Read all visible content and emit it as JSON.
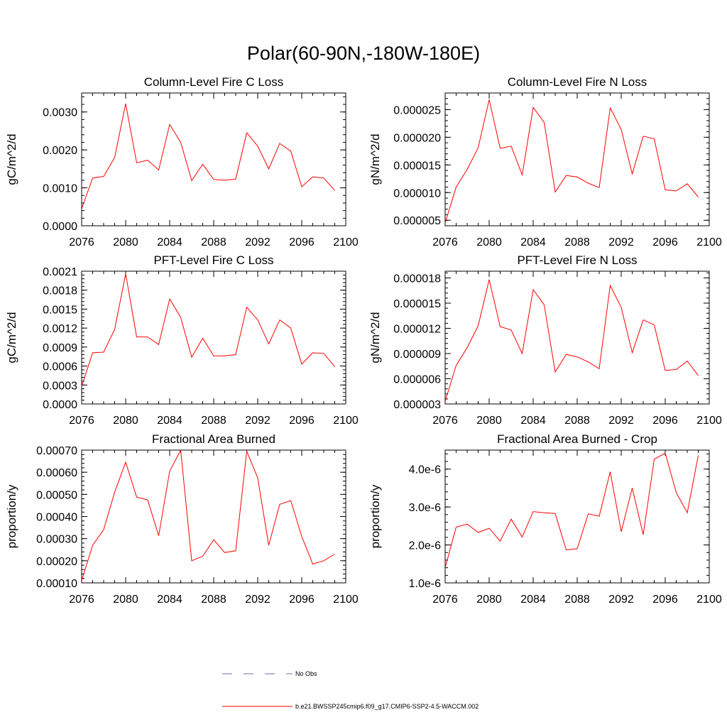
{
  "figure_title": "Polar(60-90N,-180W-180E)",
  "colors": {
    "series": "#ff0000",
    "obs": "#6b6bb3",
    "axis": "#000000"
  },
  "legend": [
    {
      "label": "No Obs",
      "style": "dashed",
      "color": "#6b6bb3"
    },
    {
      "label": "b.e21.BWSSP245cmip6.f09_g17.CMIP6-SSP2-4.5-WACCM.002",
      "style": "solid",
      "color": "#ff0000"
    }
  ],
  "chart_data": [
    {
      "type": "line",
      "title": "Column-Level Fire C Loss",
      "xlabel": "",
      "ylabel": "gC/m^2/d",
      "xlim": [
        2076,
        2100
      ],
      "ylim": [
        0,
        0.0035
      ],
      "xticks": [
        2076,
        2080,
        2084,
        2088,
        2092,
        2096,
        2100
      ],
      "xtick_labels": [
        "2076",
        "2080",
        "2084",
        "2088",
        "2092",
        "2096",
        "2100"
      ],
      "yticks": [
        0,
        0.001,
        0.002,
        0.003
      ],
      "ytick_labels": [
        "0.0000",
        "0.0010",
        "0.0020",
        "0.0030"
      ],
      "x": [
        2076,
        2077,
        2078,
        2079,
        2080,
        2081,
        2082,
        2083,
        2084,
        2085,
        2086,
        2087,
        2088,
        2089,
        2090,
        2091,
        2092,
        2093,
        2094,
        2095,
        2096,
        2097,
        2098,
        2099
      ],
      "series": [
        {
          "name": "b.e21.BWSSP245cmip6.f09_g17.CMIP6-SSP2-4.5-WACCM.002",
          "values": [
            0.00045,
            0.00126,
            0.0013,
            0.0018,
            0.00322,
            0.00166,
            0.00173,
            0.00147,
            0.00267,
            0.0022,
            0.00119,
            0.00162,
            0.00122,
            0.0012,
            0.00123,
            0.00245,
            0.0021,
            0.0015,
            0.00217,
            0.00197,
            0.00103,
            0.00129,
            0.00126,
            0.00093
          ]
        }
      ]
    },
    {
      "type": "line",
      "title": "Column-Level Fire N Loss",
      "xlabel": "",
      "ylabel": "gN/m^2/d",
      "xlim": [
        2076,
        2100
      ],
      "ylim": [
        4e-06,
        2.8e-05
      ],
      "xticks": [
        2076,
        2080,
        2084,
        2088,
        2092,
        2096,
        2100
      ],
      "xtick_labels": [
        "2076",
        "2080",
        "2084",
        "2088",
        "2092",
        "2096",
        "2100"
      ],
      "yticks": [
        5e-06,
        1e-05,
        1.5e-05,
        2e-05,
        2.5e-05
      ],
      "ytick_labels": [
        "0.000005",
        "0.000010",
        "0.000015",
        "0.000020",
        "0.000025"
      ],
      "x": [
        2076,
        2077,
        2078,
        2079,
        2080,
        2081,
        2082,
        2083,
        2084,
        2085,
        2086,
        2087,
        2088,
        2089,
        2090,
        2091,
        2092,
        2093,
        2094,
        2095,
        2096,
        2097,
        2098,
        2099
      ],
      "series": [
        {
          "name": "b.e21.BWSSP245cmip6.f09_g17.CMIP6-SSP2-4.5-WACCM.002",
          "values": [
            4.5e-06,
            1.1e-05,
            1.42e-05,
            1.81e-05,
            2.68e-05,
            1.8e-05,
            1.84e-05,
            1.32e-05,
            2.54e-05,
            2.27e-05,
            1.01e-05,
            1.31e-05,
            1.28e-05,
            1.17e-05,
            1.09e-05,
            2.53e-05,
            2.14e-05,
            1.34e-05,
            2.02e-05,
            1.97e-05,
            1.05e-05,
            1.03e-05,
            1.16e-05,
            9.2e-06
          ]
        }
      ]
    },
    {
      "type": "line",
      "title": "PFT-Level Fire C Loss",
      "xlabel": "",
      "ylabel": "gC/m^2/d",
      "xlim": [
        2076,
        2100
      ],
      "ylim": [
        0,
        0.0021
      ],
      "xticks": [
        2076,
        2080,
        2084,
        2088,
        2092,
        2096,
        2100
      ],
      "xtick_labels": [
        "2076",
        "2080",
        "2084",
        "2088",
        "2092",
        "2096",
        "2100"
      ],
      "yticks": [
        0,
        0.0003,
        0.0006,
        0.0009,
        0.0012,
        0.0015,
        0.0018,
        0.0021
      ],
      "ytick_labels": [
        "0.0000",
        "0.0003",
        "0.0006",
        "0.0009",
        "0.0012",
        "0.0015",
        "0.0018",
        "0.0021"
      ],
      "x": [
        2076,
        2077,
        2078,
        2079,
        2080,
        2081,
        2082,
        2083,
        2084,
        2085,
        2086,
        2087,
        2088,
        2089,
        2090,
        2091,
        2092,
        2093,
        2094,
        2095,
        2096,
        2097,
        2098,
        2099
      ],
      "series": [
        {
          "name": "b.e21.BWSSP245cmip6.f09_g17.CMIP6-SSP2-4.5-WACCM.002",
          "values": [
            0.00028,
            0.00081,
            0.00082,
            0.00118,
            0.00206,
            0.00106,
            0.00106,
            0.00094,
            0.00166,
            0.00137,
            0.00074,
            0.00104,
            0.00076,
            0.00076,
            0.00078,
            0.00153,
            0.00133,
            0.00095,
            0.00133,
            0.0012,
            0.00063,
            0.00081,
            0.0008,
            0.00059
          ]
        }
      ]
    },
    {
      "type": "line",
      "title": "PFT-Level Fire N Loss",
      "xlabel": "",
      "ylabel": "gN/m^2/d",
      "xlim": [
        2076,
        2100
      ],
      "ylim": [
        3e-06,
        1.88e-05
      ],
      "xticks": [
        2076,
        2080,
        2084,
        2088,
        2092,
        2096,
        2100
      ],
      "xtick_labels": [
        "2076",
        "2080",
        "2084",
        "2088",
        "2092",
        "2096",
        "2100"
      ],
      "yticks": [
        3e-06,
        6e-06,
        9e-06,
        1.2e-05,
        1.5e-05,
        1.8e-05
      ],
      "ytick_labels": [
        "0.000003",
        "0.000006",
        "0.000009",
        "0.000012",
        "0.000015",
        "0.000018"
      ],
      "x": [
        2076,
        2077,
        2078,
        2079,
        2080,
        2081,
        2082,
        2083,
        2084,
        2085,
        2086,
        2087,
        2088,
        2089,
        2090,
        2091,
        2092,
        2093,
        2094,
        2095,
        2096,
        2097,
        2098,
        2099
      ],
      "series": [
        {
          "name": "b.e21.BWSSP245cmip6.f09_g17.CMIP6-SSP2-4.5-WACCM.002",
          "values": [
            3.3e-06,
            7.6e-06,
            9.7e-06,
            1.23e-05,
            1.78e-05,
            1.22e-05,
            1.18e-05,
            9e-06,
            1.66e-05,
            1.48e-05,
            6.8e-06,
            8.9e-06,
            8.6e-06,
            8e-06,
            7.2e-06,
            1.71e-05,
            1.45e-05,
            9.1e-06,
            1.3e-05,
            1.24e-05,
            7e-06,
            7.1e-06,
            8.1e-06,
            6.4e-06
          ]
        }
      ]
    },
    {
      "type": "line",
      "title": "Fractional Area Burned",
      "xlabel": "",
      "ylabel": "proportion/y",
      "xlim": [
        2076,
        2100
      ],
      "ylim": [
        0.0001,
        0.0007
      ],
      "xticks": [
        2076,
        2080,
        2084,
        2088,
        2092,
        2096,
        2100
      ],
      "xtick_labels": [
        "2076",
        "2080",
        "2084",
        "2088",
        "2092",
        "2096",
        "2100"
      ],
      "yticks": [
        0.0001,
        0.0002,
        0.0003,
        0.0004,
        0.0005,
        0.0006,
        0.0007
      ],
      "ytick_labels": [
        "0.00010",
        "0.00020",
        "0.00030",
        "0.00040",
        "0.00050",
        "0.00060",
        "0.00070"
      ],
      "x": [
        2076,
        2077,
        2078,
        2079,
        2080,
        2081,
        2082,
        2083,
        2084,
        2085,
        2086,
        2087,
        2088,
        2089,
        2090,
        2091,
        2092,
        2093,
        2094,
        2095,
        2096,
        2097,
        2098,
        2099
      ],
      "series": [
        {
          "name": "b.e21.BWSSP245cmip6.f09_g17.CMIP6-SSP2-4.5-WACCM.002",
          "values": [
            0.00011,
            0.00027,
            0.00034,
            0.00051,
            0.000645,
            0.000488,
            0.000475,
            0.000313,
            0.000605,
            0.0007,
            0.0002,
            0.00022,
            0.000295,
            0.000237,
            0.000245,
            0.000695,
            0.000575,
            0.00027,
            0.000455,
            0.000472,
            0.00031,
            0.000185,
            0.0002,
            0.00023
          ]
        }
      ]
    },
    {
      "type": "line",
      "title": "Fractional Area Burned - Crop",
      "xlabel": "",
      "ylabel": "proportion/y",
      "xlim": [
        2076,
        2100
      ],
      "ylim": [
        1e-06,
        4.5e-06
      ],
      "xticks": [
        2076,
        2080,
        2084,
        2088,
        2092,
        2096,
        2100
      ],
      "xtick_labels": [
        "2076",
        "2080",
        "2084",
        "2088",
        "2092",
        "2096",
        "2100"
      ],
      "yticks": [
        1e-06,
        2e-06,
        3e-06,
        4e-06
      ],
      "ytick_labels": [
        "1.0e-6",
        "2.0e-6",
        "3.0e-6",
        "4.0e-6"
      ],
      "x": [
        2076,
        2077,
        2078,
        2079,
        2080,
        2081,
        2082,
        2083,
        2084,
        2085,
        2086,
        2087,
        2088,
        2089,
        2090,
        2091,
        2092,
        2093,
        2094,
        2095,
        2096,
        2097,
        2098,
        2099
      ],
      "series": [
        {
          "name": "b.e21.BWSSP245cmip6.f09_g17.CMIP6-SSP2-4.5-WACCM.002",
          "values": [
            1.4e-06,
            2.47e-06,
            2.55e-06,
            2.33e-06,
            2.44e-06,
            2.1e-06,
            2.68e-06,
            2.21e-06,
            2.88e-06,
            2.85e-06,
            2.83e-06,
            1.87e-06,
            1.9e-06,
            2.82e-06,
            2.76e-06,
            3.93e-06,
            2.35e-06,
            3.5e-06,
            2.27e-06,
            4.26e-06,
            4.42e-06,
            3.38e-06,
            2.85e-06,
            4.36e-06
          ]
        }
      ]
    }
  ]
}
